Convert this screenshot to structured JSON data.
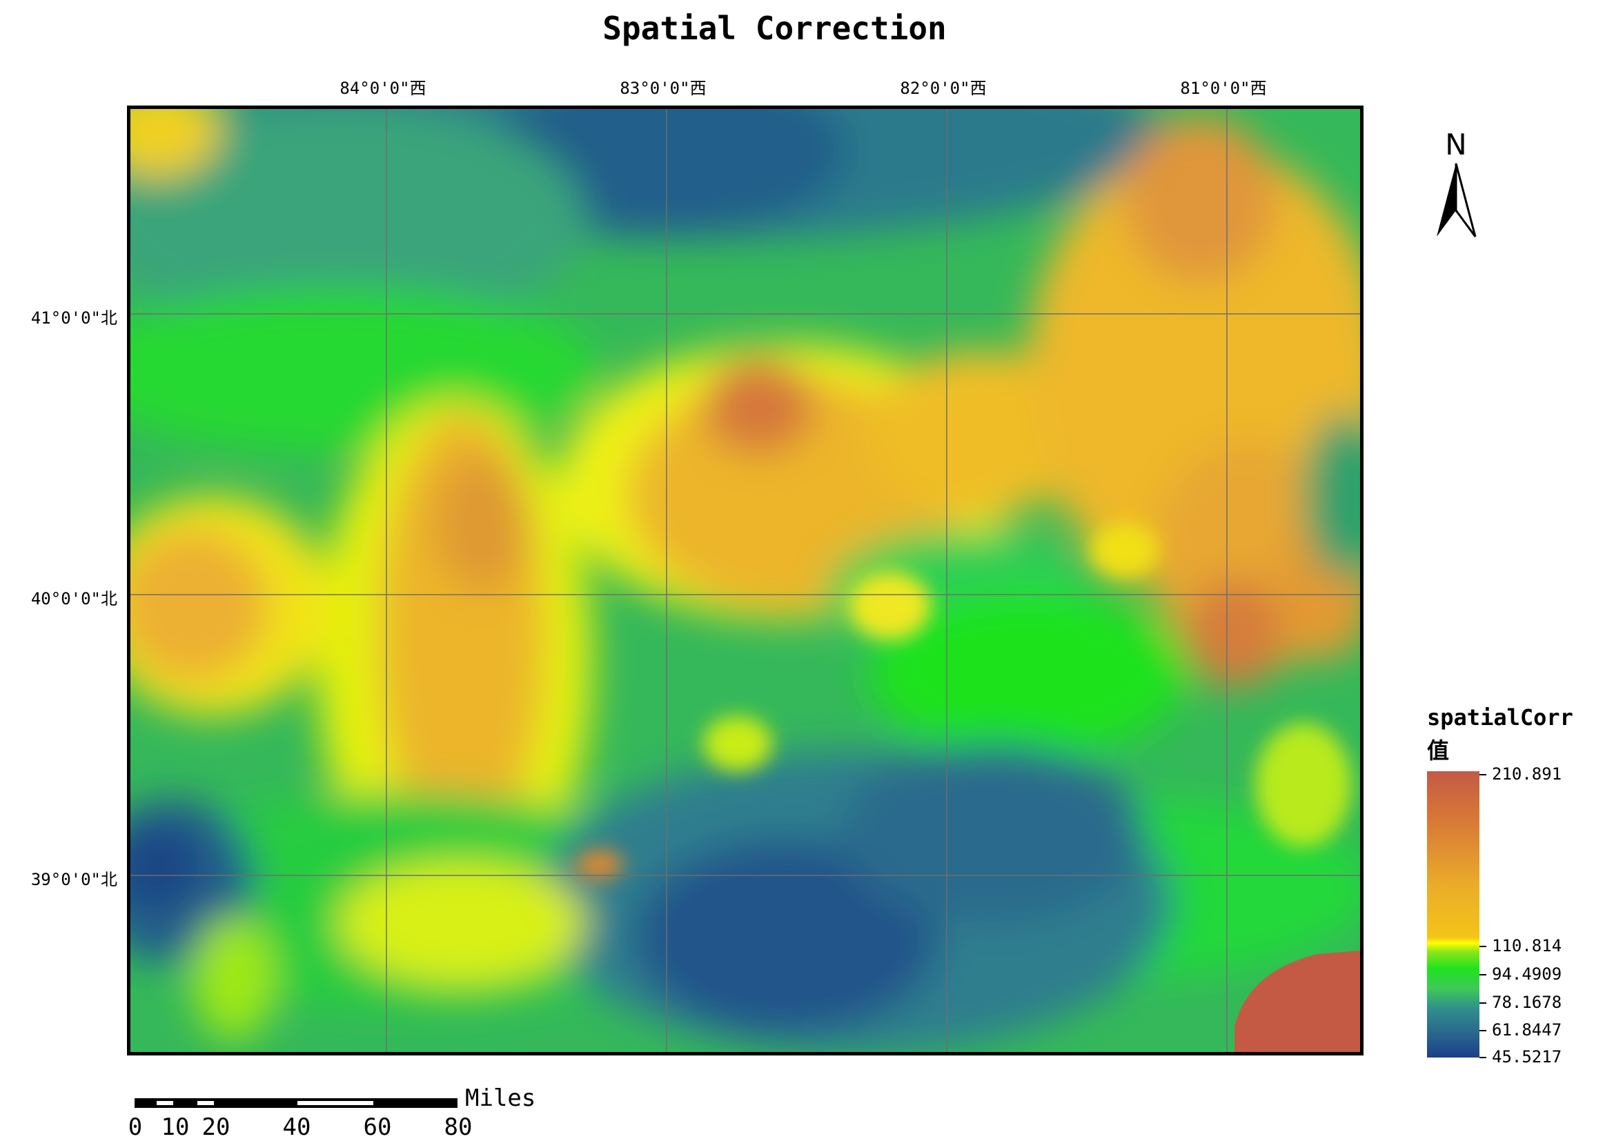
{
  "title": "Spatial Correction",
  "graticule": {
    "lon_labels": [
      "84°0'0\"西",
      "83°0'0\"西",
      "82°0'0\"西",
      "81°0'0\"西"
    ],
    "lat_labels": [
      "41°0'0\"北",
      "40°0'0\"北",
      "39°0'0\"北"
    ]
  },
  "north_arrow": {
    "letter": "N",
    "icon": "north-arrow-icon"
  },
  "legend": {
    "title_line1": "spatialCorr",
    "title_line2": "值",
    "values": [
      "210.891",
      "110.814",
      "94.4909",
      "78.1678",
      "61.8447",
      "45.5217"
    ],
    "colors": {
      "low": "#1b3f8a",
      "mid_low": "#2f8f8a",
      "green": "#1ee21e",
      "yellow": "#ffff00",
      "orange": "#ebac2a",
      "high": "#c45a44"
    }
  },
  "scale_bar": {
    "unit": "Miles",
    "labels": [
      "0",
      "10",
      "20",
      "40",
      "60",
      "80"
    ]
  }
}
